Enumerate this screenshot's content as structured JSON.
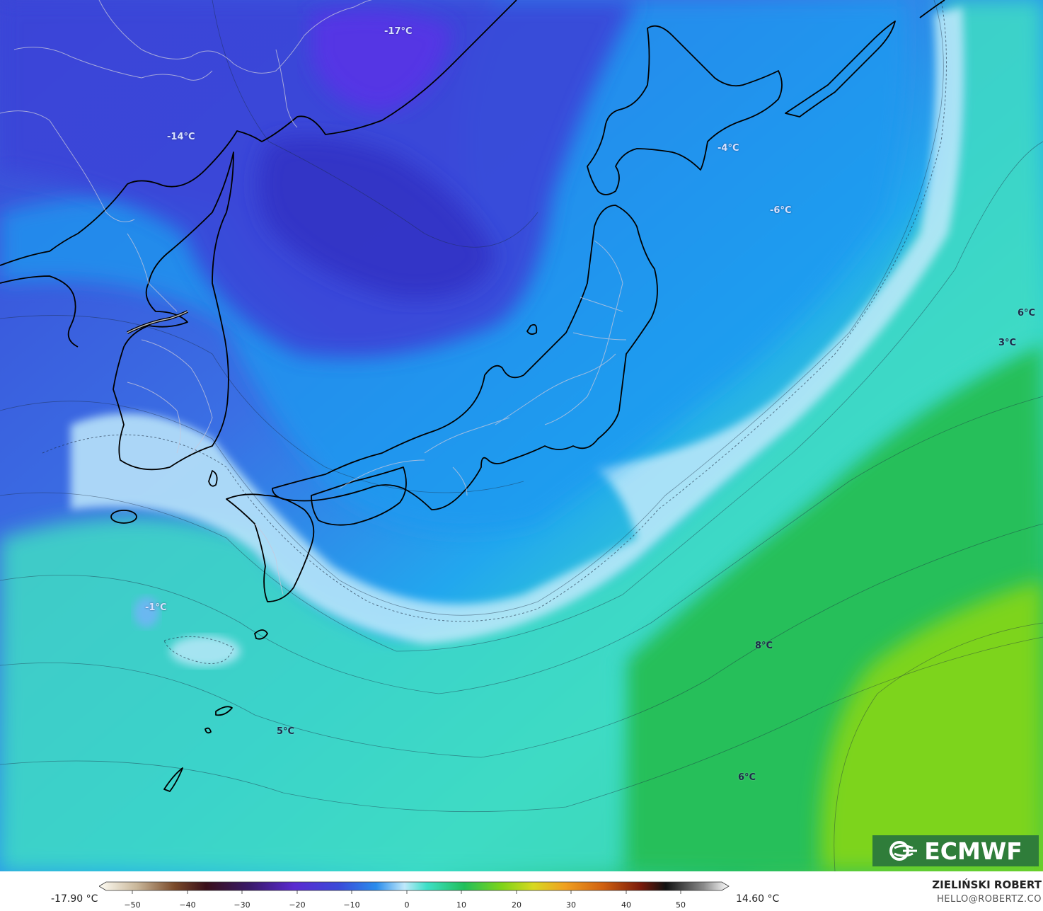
{
  "map": {
    "temperature_labels": [
      {
        "text": "-17°C",
        "tone": "light"
      },
      {
        "text": "-14°C",
        "tone": "light"
      },
      {
        "text": "-4°C",
        "tone": "light"
      },
      {
        "text": "-6°C",
        "tone": "light"
      },
      {
        "text": "6°C",
        "tone": "dark"
      },
      {
        "text": "3°C",
        "tone": "dark"
      },
      {
        "text": "-1°C",
        "tone": "light"
      },
      {
        "text": "8°C",
        "tone": "dark"
      },
      {
        "text": "5°C",
        "tone": "dark"
      },
      {
        "text": "6°C",
        "tone": "dark"
      }
    ]
  },
  "logo": {
    "text": "ECMWF"
  },
  "legend": {
    "min_label": "-17.90 °C",
    "max_label": "14.60 °C",
    "ticks": [
      "−50",
      "−40",
      "−30",
      "−20",
      "−10",
      "0",
      "10",
      "20",
      "30",
      "40",
      "50"
    ]
  },
  "credit": {
    "name": "ZIELIŃSKI ROBERT",
    "email": "HELLO@ROBERTZ.CO"
  },
  "colors": {
    "cold_deep": "#3a2fd0",
    "cold": "#3d6be0",
    "cool": "#1fa8f0",
    "freezing": "#bfe9fb",
    "mild": "#3ee0c8",
    "warm": "#2ec46a",
    "warmer": "#7fd11a",
    "logo_bg": "#2f7d3a"
  }
}
